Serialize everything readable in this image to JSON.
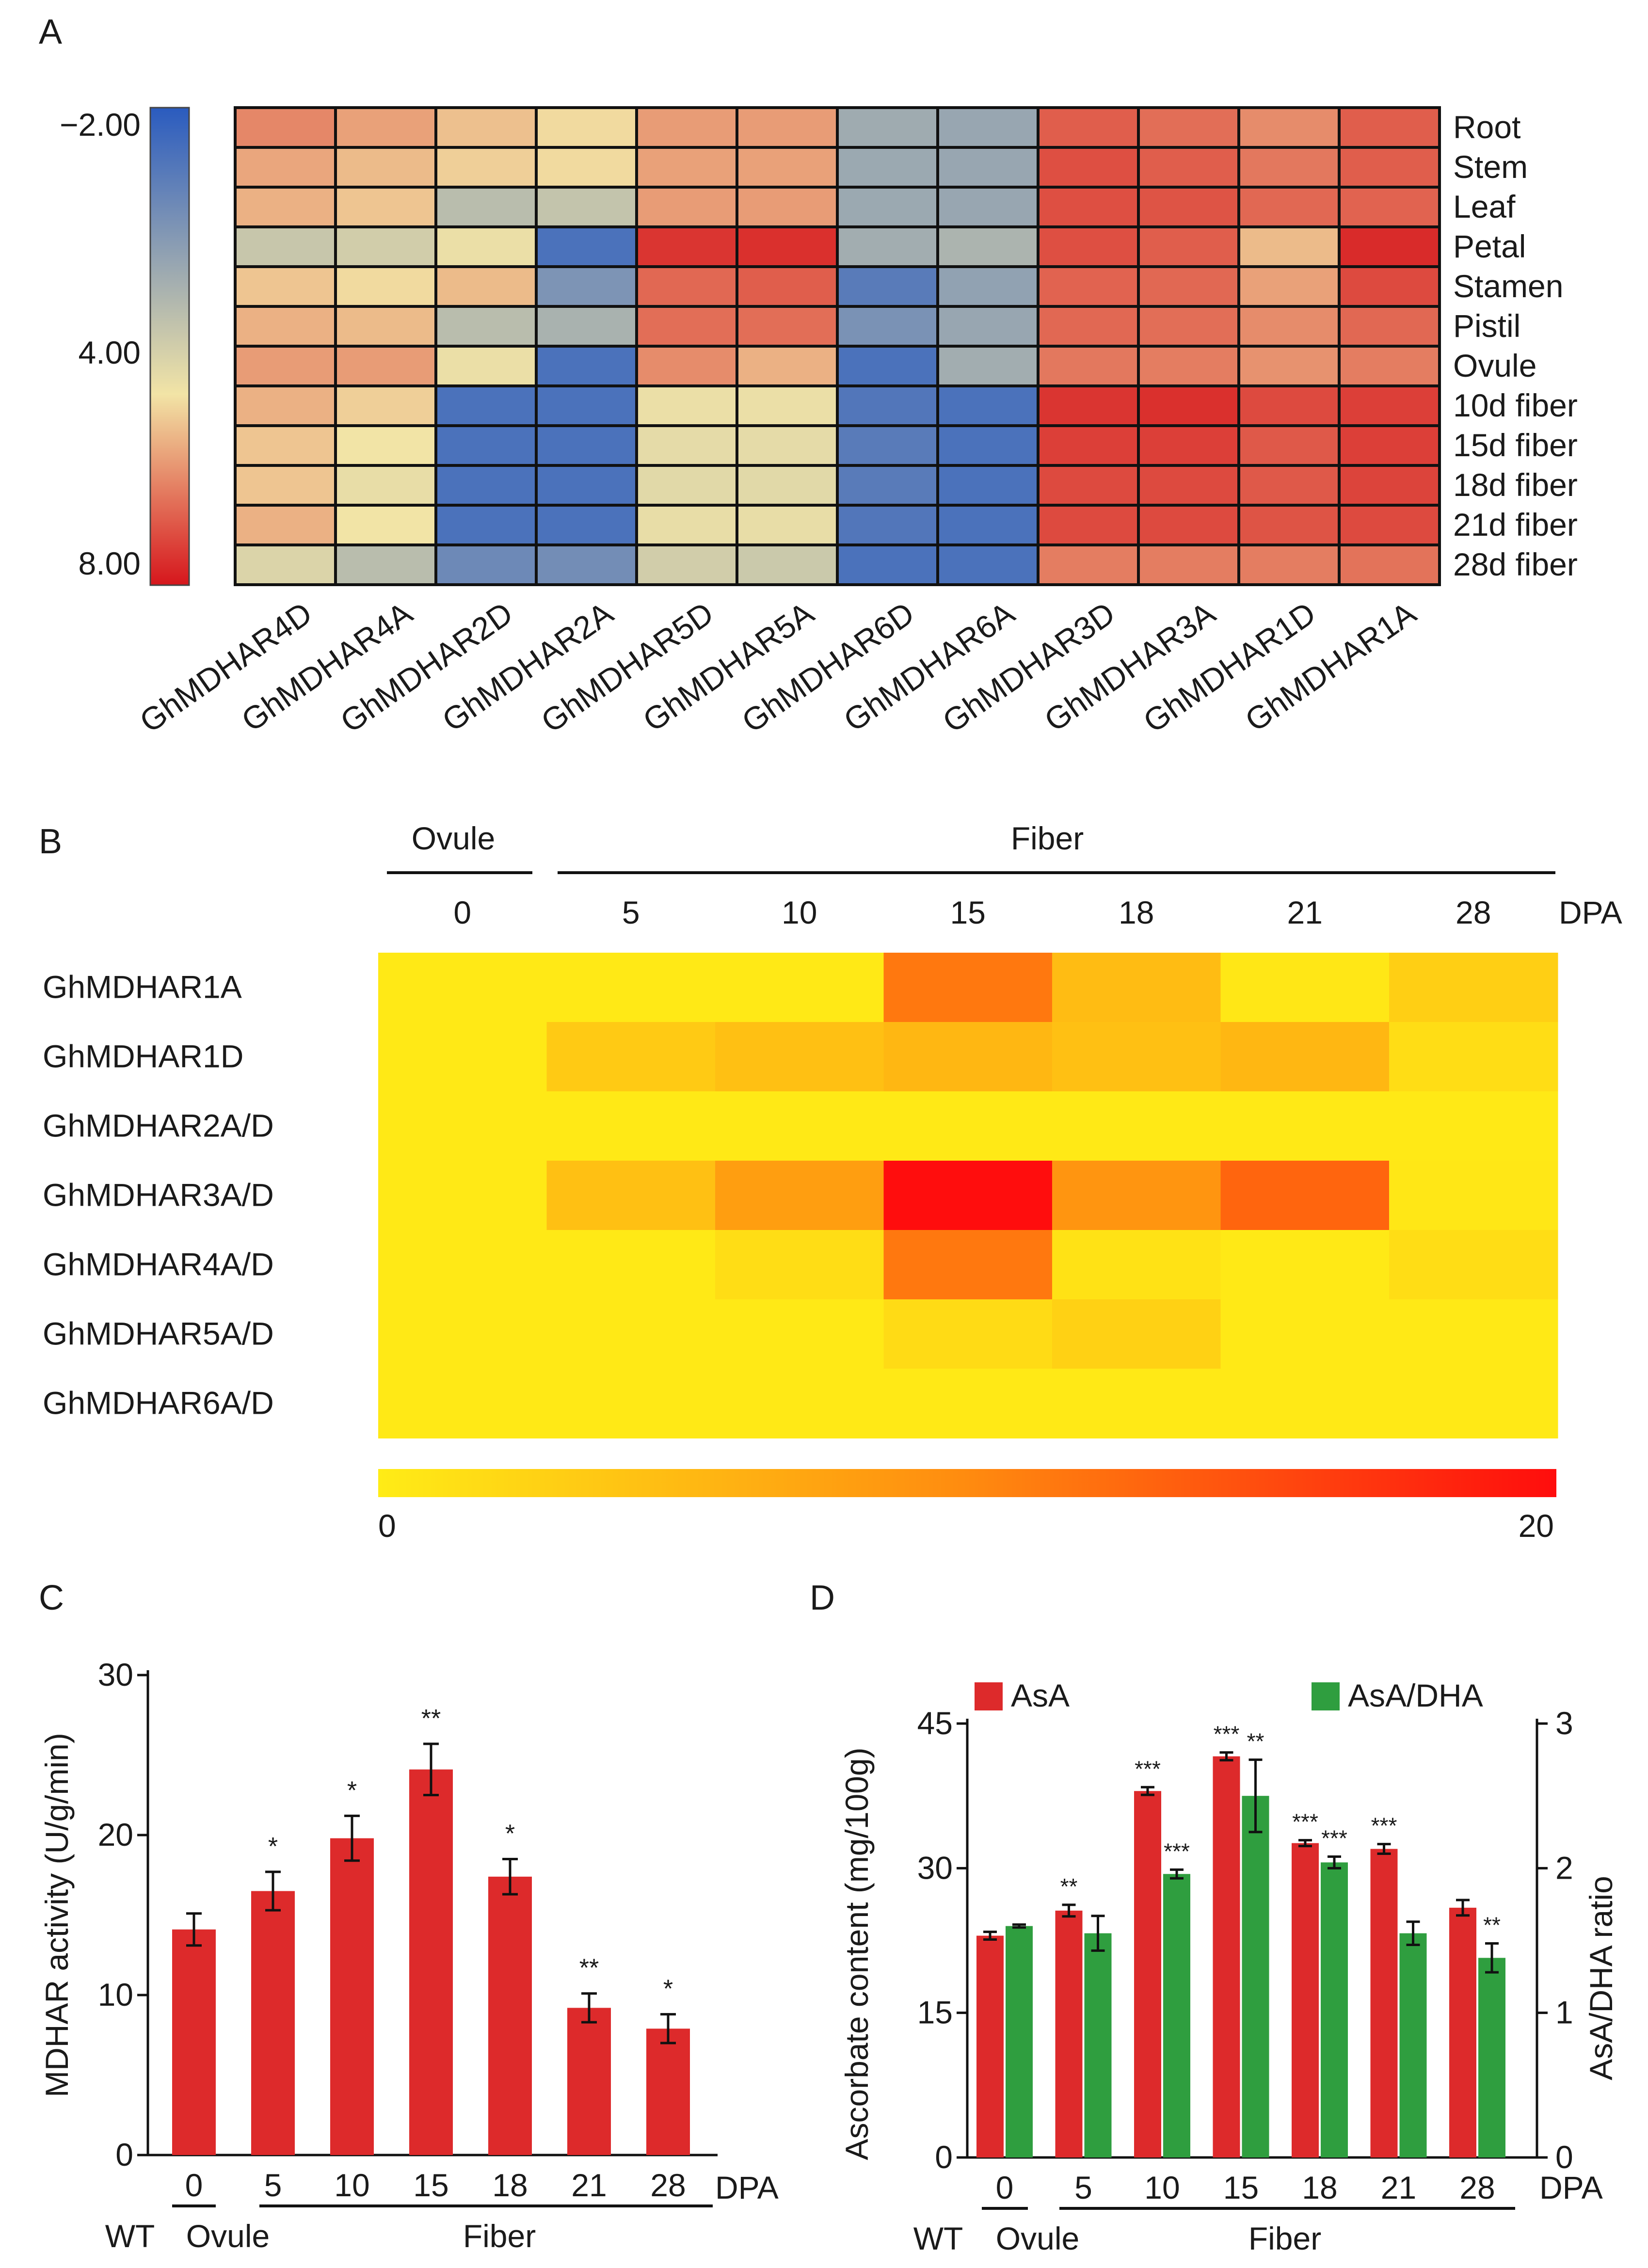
{
  "panels": {
    "a": "A",
    "b": "B",
    "c": "C",
    "d": "D"
  },
  "chart_data": [
    {
      "type": "heatmap",
      "panel": "A",
      "title": "",
      "columns": [
        "GhMDHAR4D",
        "GhMDHAR4A",
        "GhMDHAR2D",
        "GhMDHAR2A",
        "GhMDHAR5D",
        "GhMDHAR5A",
        "GhMDHAR6D",
        "GhMDHAR6A",
        "GhMDHAR3D",
        "GhMDHAR3A",
        "GhMDHAR1D",
        "GhMDHAR1A"
      ],
      "rows": [
        "Root",
        "Stem",
        "Leaf",
        "Petal",
        "Stamen",
        "Pistil",
        "Ovule",
        "10d fiber",
        "15d fiber",
        "18d fiber",
        "21d fiber",
        "28d fiber"
      ],
      "values": [
        [
          5.8,
          5.3,
          4.7,
          4.2,
          5.4,
          5.4,
          1.5,
          1.3,
          6.6,
          6.3,
          5.7,
          6.6
        ],
        [
          5.2,
          4.8,
          4.4,
          4.2,
          5.3,
          5.3,
          1.4,
          1.3,
          6.9,
          6.6,
          6.1,
          6.6
        ],
        [
          5.0,
          4.6,
          2.3,
          2.6,
          5.4,
          5.4,
          1.4,
          1.3,
          6.9,
          6.8,
          6.4,
          6.5
        ],
        [
          2.7,
          3.0,
          3.8,
          -1.0,
          7.4,
          7.5,
          1.6,
          1.9,
          6.9,
          6.6,
          4.8,
          7.6
        ],
        [
          4.6,
          4.2,
          4.8,
          0.5,
          6.4,
          6.6,
          -0.6,
          1.1,
          6.5,
          6.4,
          5.3,
          7.0
        ],
        [
          5.0,
          4.8,
          2.3,
          1.8,
          6.3,
          6.3,
          0.4,
          1.3,
          6.4,
          6.3,
          5.7,
          6.4
        ],
        [
          5.4,
          5.4,
          3.8,
          -1.0,
          5.7,
          5.0,
          -1.0,
          1.6,
          6.1,
          6.0,
          5.6,
          6.0
        ],
        [
          5.0,
          4.4,
          -1.0,
          -1.0,
          3.8,
          3.8,
          -0.8,
          -1.0,
          7.4,
          7.5,
          7.0,
          7.2
        ],
        [
          4.6,
          4.0,
          -1.0,
          -1.0,
          3.6,
          3.6,
          -0.6,
          -1.0,
          7.2,
          7.2,
          6.7,
          7.2
        ],
        [
          4.6,
          3.7,
          -1.0,
          -1.0,
          3.5,
          3.5,
          -0.6,
          -1.0,
          7.0,
          7.0,
          6.7,
          7.1
        ],
        [
          5.0,
          4.0,
          -1.0,
          -1.0,
          3.7,
          3.7,
          -0.8,
          -1.0,
          7.0,
          7.0,
          6.8,
          7.0
        ],
        [
          3.3,
          2.3,
          0.0,
          0.2,
          3.0,
          2.8,
          -1.0,
          -1.0,
          6.0,
          6.0,
          6.0,
          6.2
        ]
      ],
      "colorbar": {
        "ticks": [
          "−2.00",
          "4.00",
          "8.00"
        ],
        "min": -2,
        "mid": 4,
        "max": 8,
        "colors": {
          "low": "#2a5bbf",
          "mid": "#f2e4a6",
          "high": "#d6161c"
        }
      }
    },
    {
      "type": "heatmap",
      "panel": "B",
      "group_labels": {
        "ovule": "Ovule",
        "fiber": "Fiber"
      },
      "x_unit": "DPA",
      "columns": [
        "0",
        "5",
        "10",
        "15",
        "18",
        "21",
        "28"
      ],
      "rows": [
        "GhMDHAR1A",
        "GhMDHAR1D",
        "GhMDHAR2A/D",
        "GhMDHAR3A/D",
        "GhMDHAR4A/D",
        "GhMDHAR5A/D",
        "GhMDHAR6A/D"
      ],
      "values": [
        [
          0.3,
          0.3,
          0.3,
          11.5,
          5.0,
          0.5,
          3.0
        ],
        [
          0.3,
          3.5,
          4.5,
          5.5,
          4.5,
          5.5,
          1.5
        ],
        [
          0.3,
          0.3,
          0.3,
          0.3,
          0.3,
          0.3,
          0.3
        ],
        [
          0.3,
          4.5,
          8.0,
          20.0,
          9.0,
          13.0,
          0.5
        ],
        [
          0.3,
          0.3,
          1.5,
          11.5,
          1.0,
          0.3,
          1.5
        ],
        [
          0.3,
          0.3,
          0.3,
          1.8,
          2.8,
          0.3,
          0.3
        ],
        [
          0.3,
          0.3,
          0.3,
          0.3,
          0.3,
          0.3,
          0.3
        ]
      ],
      "colorbar": {
        "min_label": "0",
        "max_label": "20",
        "min": 0,
        "max": 20,
        "colors": {
          "low": "#ffec16",
          "high": "#ff0d0d"
        }
      }
    },
    {
      "type": "bar",
      "panel": "C",
      "categories": [
        "0",
        "5",
        "10",
        "15",
        "18",
        "21",
        "28"
      ],
      "values": [
        14.1,
        16.5,
        19.8,
        24.1,
        17.4,
        9.2,
        7.9
      ],
      "errors": [
        1.0,
        1.2,
        1.4,
        1.6,
        1.1,
        0.9,
        0.9
      ],
      "significance": [
        "",
        "*",
        "*",
        "**",
        "*",
        "**",
        "*"
      ],
      "ylabel": "MDHAR activity (U/g/min)",
      "xunit": "DPA",
      "ylim": [
        0,
        30
      ],
      "yticks": [
        "0",
        "10",
        "20",
        "30"
      ],
      "group_labels": {
        "wt": "WT",
        "ovule": "Ovule",
        "fiber": "Fiber"
      },
      "color": "#dd2a2b"
    },
    {
      "type": "bar",
      "panel": "D",
      "categories": [
        "0",
        "5",
        "10",
        "15",
        "18",
        "21",
        "28"
      ],
      "series": [
        {
          "name": "AsA",
          "axis": "left",
          "color": "#dd2a2b",
          "values": [
            23.0,
            25.6,
            38.0,
            41.6,
            32.6,
            32.0,
            25.9
          ],
          "errors": [
            0.4,
            0.6,
            0.4,
            0.4,
            0.3,
            0.5,
            0.8
          ],
          "significance": [
            "",
            "**",
            "***",
            "***",
            "***",
            "***",
            ""
          ]
        },
        {
          "name": "AsA/DHA",
          "axis": "right",
          "color": "#2f9e3f",
          "values": [
            1.6,
            1.55,
            1.96,
            2.5,
            2.04,
            1.55,
            1.38
          ],
          "errors": [
            0.01,
            0.12,
            0.03,
            0.25,
            0.04,
            0.08,
            0.1
          ],
          "significance": [
            "",
            "",
            "***",
            "**",
            "***",
            "",
            "**"
          ]
        }
      ],
      "ylabel": "Ascorbate content (mg/100g)",
      "y2label": "AsA/DHA ratio",
      "ylim": [
        0,
        45
      ],
      "yticks": [
        "0",
        "15",
        "30",
        "45"
      ],
      "y2lim": [
        0,
        3
      ],
      "y2ticks": [
        "0",
        "1",
        "2",
        "3"
      ],
      "xunit": "DPA",
      "group_labels": {
        "wt": "WT",
        "ovule": "Ovule",
        "fiber": "Fiber"
      }
    }
  ]
}
